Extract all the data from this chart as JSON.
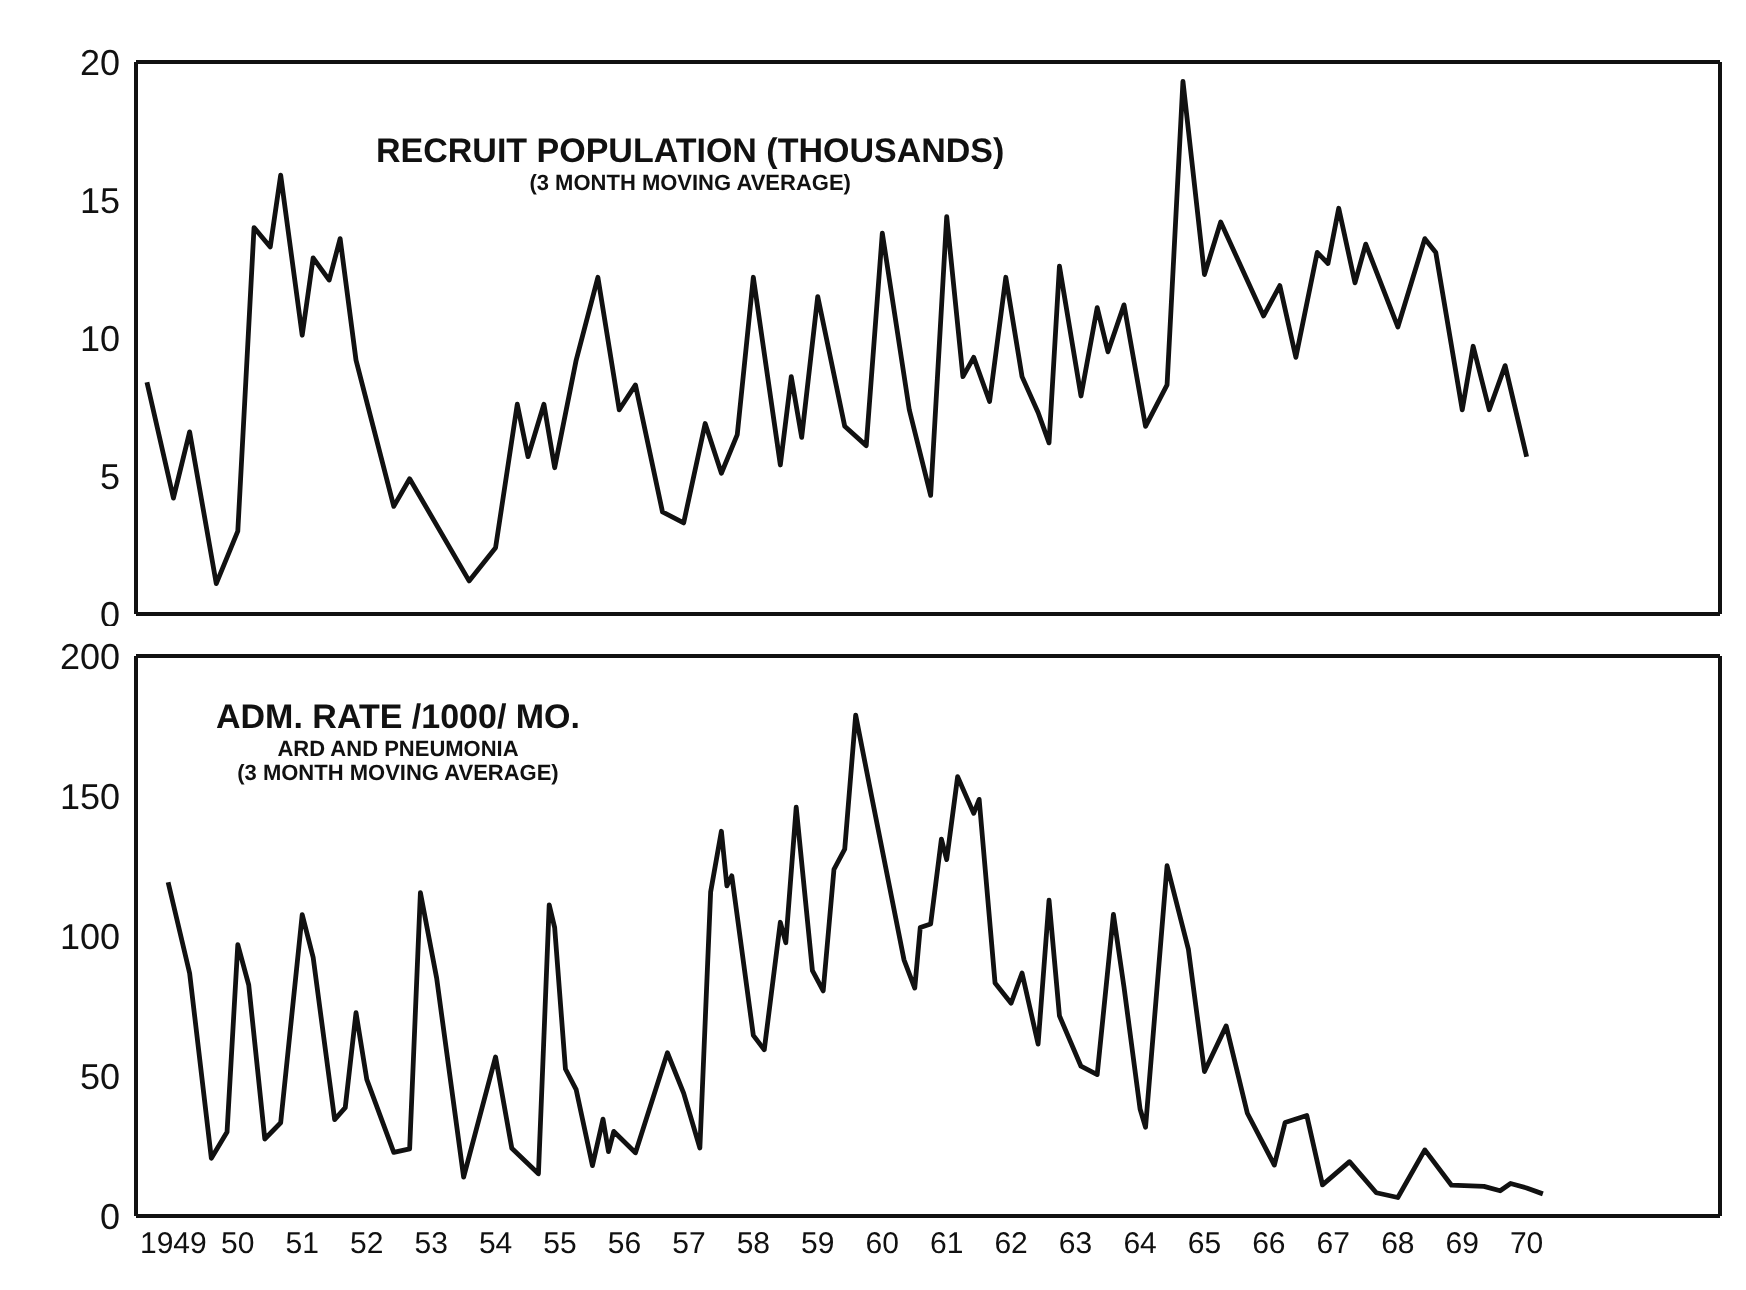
{
  "chart_data": [
    {
      "type": "line",
      "title": "RECRUIT POPULATION (THOUSANDS)",
      "annotations": [
        "(3 MONTH MOVING AVERAGE)"
      ],
      "marker": "none",
      "tick_labels": "y",
      "xlim": [
        "1948-12",
        "1973-07"
      ],
      "ylim": [
        0,
        20
      ],
      "yticks": [
        0,
        5,
        10,
        15,
        20
      ],
      "series": [
        {
          "color": "#111111",
          "x": [
            "1949-02",
            "1949-07",
            "1949-10",
            "1950-03",
            "1950-07",
            "1950-10",
            "1951-01",
            "1951-03",
            "1951-07",
            "1951-09",
            "1951-12",
            "1952-02",
            "1952-05",
            "1952-12",
            "1953-03",
            "1954-02",
            "1954-07",
            "1954-11",
            "1955-01",
            "1955-04",
            "1955-06",
            "1955-10",
            "1956-02",
            "1956-06",
            "1956-09",
            "1957-02",
            "1957-06",
            "1957-10",
            "1958-01",
            "1958-04",
            "1958-07",
            "1958-12",
            "1959-02",
            "1959-04",
            "1959-07",
            "1959-12",
            "1960-04",
            "1960-07",
            "1960-12",
            "1961-04",
            "1961-07",
            "1961-10",
            "1961-12",
            "1962-03",
            "1962-06",
            "1962-09",
            "1962-12",
            "1963-02",
            "1963-04",
            "1963-08",
            "1963-11",
            "1964-01",
            "1964-04",
            "1964-08",
            "1964-12",
            "1965-03",
            "1965-07",
            "1965-10",
            "1966-06",
            "1966-09",
            "1966-12",
            "1967-04",
            "1967-06",
            "1967-08",
            "1967-11",
            "1968-01",
            "1968-07",
            "1968-12",
            "1969-02",
            "1969-07",
            "1969-09",
            "1969-12",
            "1970-03",
            "1970-07"
          ],
          "values": [
            8.4,
            4.2,
            6.6,
            1.1,
            3.0,
            14.0,
            13.3,
            15.9,
            10.1,
            12.9,
            12.1,
            13.6,
            9.2,
            3.9,
            4.9,
            1.2,
            2.4,
            7.6,
            5.7,
            7.6,
            5.3,
            9.2,
            12.2,
            7.4,
            8.3,
            3.7,
            3.3,
            6.9,
            5.1,
            6.5,
            12.2,
            5.4,
            8.6,
            6.4,
            11.5,
            6.8,
            6.1,
            13.8,
            7.4,
            4.3,
            14.4,
            8.6,
            9.3,
            7.7,
            12.2,
            8.6,
            7.3,
            6.2,
            12.6,
            7.9,
            11.1,
            9.5,
            11.2,
            6.8,
            8.3,
            19.3,
            12.3,
            14.2,
            10.8,
            11.9,
            9.3,
            13.1,
            12.7,
            14.7,
            12.0,
            13.4,
            10.4,
            13.6,
            13.1,
            7.4,
            9.7,
            7.4,
            9.0,
            5.7
          ]
        }
      ]
    },
    {
      "type": "line",
      "title": "ADM. RATE /1000/ MO.",
      "annotations": [
        "ARD AND PNEUMONIA",
        "(3 MONTH MOVING AVERAGE)"
      ],
      "marker": "none",
      "xlim": [
        "1948-12",
        "1973-07"
      ],
      "xticks": [
        {
          "value": "1949-07",
          "label": "1949"
        },
        {
          "value": "1950-07",
          "label": "50"
        },
        {
          "value": "1951-07",
          "label": "51"
        },
        {
          "value": "1952-07",
          "label": "52"
        },
        {
          "value": "1953-07",
          "label": "53"
        },
        {
          "value": "1954-07",
          "label": "54"
        },
        {
          "value": "1955-07",
          "label": "55"
        },
        {
          "value": "1956-07",
          "label": "56"
        },
        {
          "value": "1957-07",
          "label": "57"
        },
        {
          "value": "1958-07",
          "label": "58"
        },
        {
          "value": "1959-07",
          "label": "59"
        },
        {
          "value": "1960-07",
          "label": "60"
        },
        {
          "value": "1961-07",
          "label": "61"
        },
        {
          "value": "1962-07",
          "label": "62"
        },
        {
          "value": "1963-07",
          "label": "63"
        },
        {
          "value": "1964-07",
          "label": "64"
        },
        {
          "value": "1965-07",
          "label": "65"
        },
        {
          "value": "1966-07",
          "label": "66"
        },
        {
          "value": "1967-07",
          "label": "67"
        },
        {
          "value": "1968-07",
          "label": "68"
        },
        {
          "value": "1969-07",
          "label": "69"
        },
        {
          "value": "1970-07",
          "label": "70"
        }
      ],
      "ylim": [
        0,
        200
      ],
      "yticks": [
        0,
        50,
        100,
        150,
        200
      ],
      "series": [
        {
          "color": "#111111",
          "x": [
            "1949-06",
            "1949-10",
            "1950-02",
            "1950-05",
            "1950-07",
            "1950-09",
            "1950-12",
            "1951-03",
            "1951-07",
            "1951-09",
            "1952-01",
            "1952-03",
            "1952-05",
            "1952-07",
            "1952-12",
            "1953-03",
            "1953-05",
            "1953-08",
            "1954-01",
            "1954-07",
            "1954-10",
            "1955-03",
            "1955-05",
            "1955-06",
            "1955-08",
            "1955-10",
            "1956-01",
            "1956-03",
            "1956-04",
            "1956-05",
            "1956-09",
            "1957-03",
            "1957-06",
            "1957-09",
            "1957-11",
            "1958-01",
            "1958-02",
            "1958-03",
            "1958-07",
            "1958-09",
            "1958-12",
            "1959-01",
            "1959-03",
            "1959-06",
            "1959-08",
            "1959-10",
            "1959-12",
            "1960-02",
            "1960-05",
            "1960-11",
            "1961-01",
            "1961-02",
            "1961-04",
            "1961-06",
            "1961-07",
            "1961-09",
            "1961-12",
            "1962-01",
            "1962-04",
            "1962-07",
            "1962-09",
            "1962-12",
            "1963-02",
            "1963-04",
            "1963-08",
            "1963-11",
            "1964-02",
            "1964-04",
            "1964-07",
            "1964-08",
            "1964-12",
            "1965-04",
            "1965-07",
            "1965-11",
            "1966-03",
            "1966-08",
            "1966-10",
            "1967-02",
            "1967-05",
            "1967-10",
            "1968-03",
            "1968-07",
            "1968-12",
            "1969-05",
            "1969-11",
            "1970-02",
            "1970-04",
            "1970-07",
            "1970-10"
          ],
          "values": [
            119.2,
            86.7,
            20.6,
            30,
            96.9,
            82.5,
            27.5,
            33.3,
            107.6,
            92.4,
            34.4,
            38.7,
            72.6,
            48.8,
            22.7,
            24,
            115.5,
            85,
            13.9,
            56.8,
            24.2,
            15.1,
            111.1,
            103,
            52.5,
            45.1,
            18,
            34.6,
            23,
            30.2,
            22.6,
            58.3,
            43.9,
            24.3,
            115.7,
            137.4,
            117.9,
            121.5,
            64.5,
            59.4,
            104.9,
            97.6,
            146,
            87.6,
            80.4,
            123.8,
            131,
            178.9,
            150,
            91.5,
            81.4,
            103,
            104.3,
            134.6,
            127.3,
            156.9,
            143.8,
            148.8,
            83.2,
            76,
            86.8,
            61.4,
            112.8,
            71.5,
            53.5,
            50.5,
            107.7,
            81.7,
            38.2,
            31.7,
            125.1,
            95.2,
            51.6,
            67.9,
            36.7,
            18.2,
            33.4,
            35.9,
            11.1,
            19.4,
            8.3,
            6.6,
            23.6,
            11,
            10.6,
            9,
            11.6,
            10,
            7.9
          ]
        }
      ]
    }
  ]
}
